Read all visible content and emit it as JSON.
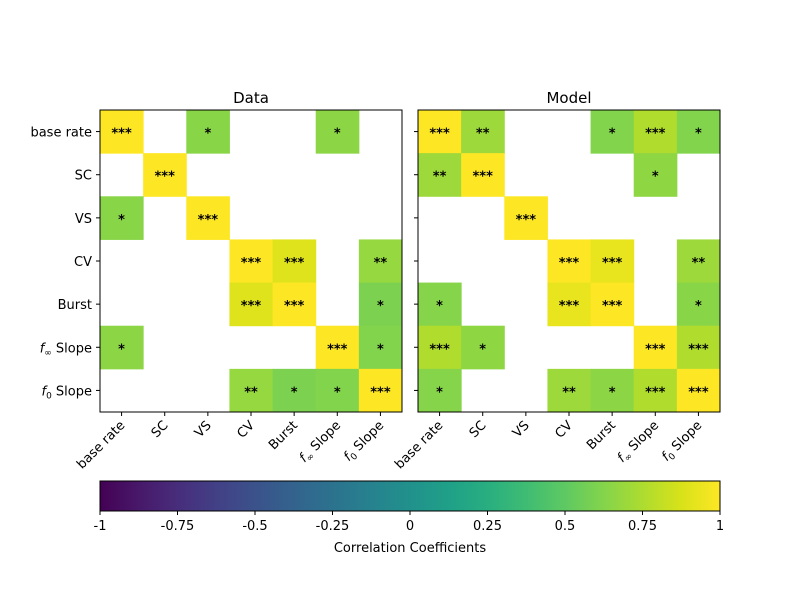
{
  "chart_data": [
    {
      "type": "heatmap",
      "title": "Data",
      "row_labels": [
        "base rate",
        "SC",
        "VS",
        "CV",
        "Burst",
        "f∞ Slope",
        "f0 Slope"
      ],
      "col_labels": [
        "base rate",
        "SC",
        "VS",
        "CV",
        "Burst",
        "f∞ Slope",
        "f0 Slope"
      ],
      "values": [
        [
          1.0,
          null,
          0.64,
          null,
          null,
          0.65,
          null
        ],
        [
          null,
          1.0,
          null,
          null,
          null,
          null,
          null
        ],
        [
          0.64,
          null,
          1.0,
          null,
          null,
          null,
          null
        ],
        [
          null,
          null,
          null,
          1.0,
          0.9,
          null,
          0.68
        ],
        [
          null,
          null,
          null,
          0.9,
          1.0,
          null,
          0.6
        ],
        [
          0.65,
          null,
          null,
          null,
          null,
          1.0,
          0.62
        ],
        [
          null,
          null,
          null,
          0.68,
          0.6,
          0.62,
          1.0
        ]
      ],
      "significance": [
        [
          "***",
          "",
          "*",
          "",
          "",
          "*",
          ""
        ],
        [
          "",
          "***",
          "",
          "",
          "",
          "",
          ""
        ],
        [
          "*",
          "",
          "***",
          "",
          "",
          "",
          ""
        ],
        [
          "",
          "",
          "",
          "***",
          "***",
          "",
          "**"
        ],
        [
          "",
          "",
          "",
          "***",
          "***",
          "",
          "*"
        ],
        [
          "*",
          "",
          "",
          "",
          "",
          "***",
          "*"
        ],
        [
          "",
          "",
          "",
          "**",
          "*",
          "*",
          "***"
        ]
      ]
    },
    {
      "type": "heatmap",
      "title": "Model",
      "row_labels": [
        "base rate",
        "SC",
        "VS",
        "CV",
        "Burst",
        "f∞ Slope",
        "f0 Slope"
      ],
      "col_labels": [
        "base rate",
        "SC",
        "VS",
        "CV",
        "Burst",
        "f∞ Slope",
        "f0 Slope"
      ],
      "values": [
        [
          1.0,
          0.7,
          null,
          null,
          0.62,
          0.76,
          0.62
        ],
        [
          0.7,
          1.0,
          null,
          null,
          null,
          0.66,
          null
        ],
        [
          null,
          null,
          1.0,
          null,
          null,
          null,
          null
        ],
        [
          null,
          null,
          null,
          1.0,
          0.93,
          null,
          0.7
        ],
        [
          0.63,
          null,
          null,
          0.93,
          1.0,
          null,
          0.64
        ],
        [
          0.76,
          0.66,
          null,
          null,
          null,
          1.0,
          0.76
        ],
        [
          0.63,
          null,
          null,
          0.7,
          0.65,
          0.76,
          1.0
        ]
      ],
      "significance": [
        [
          "***",
          "**",
          "",
          "",
          "*",
          "***",
          "*"
        ],
        [
          "**",
          "***",
          "",
          "",
          "",
          "*",
          ""
        ],
        [
          "",
          "",
          "***",
          "",
          "",
          "",
          ""
        ],
        [
          "",
          "",
          "",
          "***",
          "***",
          "",
          "**"
        ],
        [
          "*",
          "",
          "",
          "***",
          "***",
          "",
          "*"
        ],
        [
          "***",
          "*",
          "",
          "",
          "",
          "***",
          "***"
        ],
        [
          "*",
          "",
          "",
          "**",
          "*",
          "***",
          "***"
        ]
      ]
    }
  ],
  "colorbar": {
    "label": "Correlation Coefficients",
    "range": [
      -1,
      1
    ],
    "ticks": [
      -1,
      -0.75,
      -0.5,
      -0.25,
      0,
      0.25,
      0.5,
      0.75,
      1
    ],
    "tick_labels": [
      "-1",
      "-0.75",
      "-0.5",
      "-0.25",
      "0",
      "0.25",
      "0.5",
      "0.75",
      "1"
    ],
    "colormap": "viridis"
  },
  "colors": {
    "significance_text": "#1f2bd6",
    "missing_cell": "#ffffff"
  }
}
